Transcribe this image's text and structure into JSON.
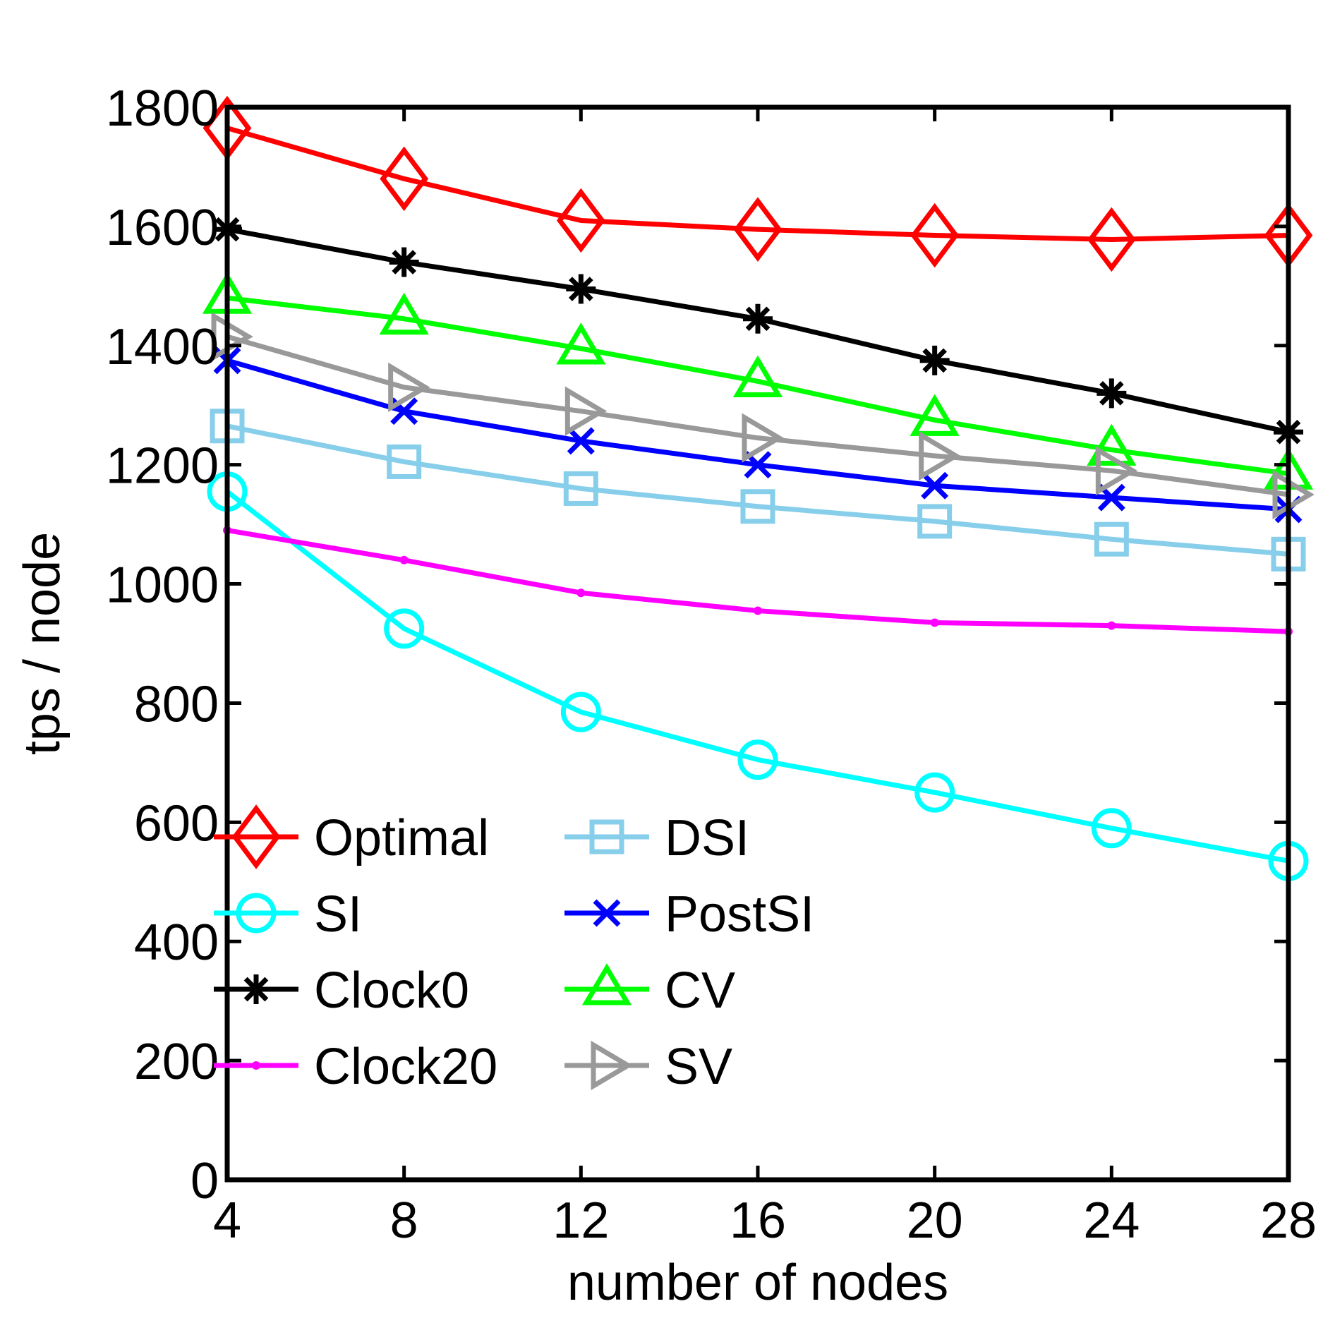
{
  "chart_data": {
    "type": "line",
    "title": "",
    "xlabel": "number of nodes",
    "ylabel": "tps / node",
    "x": [
      4,
      8,
      12,
      16,
      20,
      24,
      28
    ],
    "xlim": [
      4,
      28
    ],
    "ylim": [
      0,
      1800
    ],
    "xticks": [
      "4",
      "8",
      "12",
      "16",
      "20",
      "24",
      "28"
    ],
    "yticks": [
      "0",
      "200",
      "400",
      "600",
      "800",
      "1000",
      "1200",
      "1400",
      "1600",
      "1800"
    ],
    "grid": false,
    "legend_position": "bottom-left, two columns",
    "series": [
      {
        "name": "Optimal",
        "color": "#ff0000",
        "marker": "diamond",
        "values": [
          1765,
          1680,
          1610,
          1595,
          1585,
          1578,
          1585
        ]
      },
      {
        "name": "SI",
        "color": "#00ffff",
        "marker": "circle",
        "values": [
          1155,
          925,
          785,
          705,
          650,
          590,
          535
        ]
      },
      {
        "name": "Clock0",
        "color": "#000000",
        "marker": "asterisk",
        "values": [
          1595,
          1540,
          1495,
          1445,
          1375,
          1320,
          1255
        ]
      },
      {
        "name": "Clock20",
        "color": "#ff00ff",
        "marker": "dot",
        "values": [
          1090,
          1040,
          985,
          955,
          935,
          930,
          920
        ]
      },
      {
        "name": "DSI",
        "color": "#87ceeb",
        "marker": "square",
        "values": [
          1265,
          1205,
          1160,
          1130,
          1105,
          1075,
          1050
        ]
      },
      {
        "name": "PostSI",
        "color": "#0000ff",
        "marker": "x",
        "values": [
          1375,
          1290,
          1240,
          1200,
          1165,
          1145,
          1125
        ]
      },
      {
        "name": "CV",
        "color": "#00ff00",
        "marker": "triangle-up",
        "values": [
          1480,
          1445,
          1395,
          1340,
          1275,
          1225,
          1185
        ]
      },
      {
        "name": "SV",
        "color": "#999999",
        "marker": "triangle-right",
        "values": [
          1415,
          1330,
          1290,
          1245,
          1215,
          1190,
          1150
        ]
      }
    ]
  }
}
